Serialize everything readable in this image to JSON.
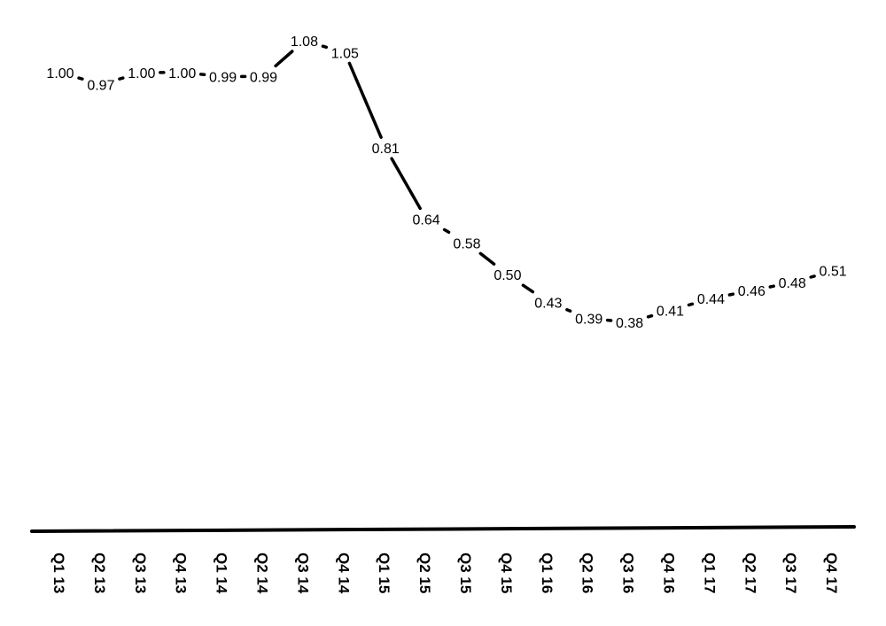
{
  "chart_data": {
    "type": "line",
    "title": "",
    "xlabel": "",
    "ylabel": "",
    "categories": [
      "Q1 13",
      "Q2 13",
      "Q3 13",
      "Q4 13",
      "Q1 14",
      "Q2 14",
      "Q3 14",
      "Q4 14",
      "Q1 15",
      "Q2 15",
      "Q3 15",
      "Q4 15",
      "Q1 16",
      "Q2 16",
      "Q3 16",
      "Q4 16",
      "Q1 17",
      "Q2 17",
      "Q3 17",
      "Q4 17"
    ],
    "series": [
      {
        "values": [
          1.0,
          0.97,
          1.0,
          1.0,
          0.99,
          0.99,
          1.08,
          1.05,
          0.81,
          0.64,
          0.58,
          0.5,
          0.43,
          0.39,
          0.38,
          0.41,
          0.44,
          0.46,
          0.48,
          0.51
        ],
        "labels": [
          "1.00",
          "0.97",
          "1.00",
          "1.00",
          "0.99",
          "0.99",
          "1.08",
          "1.05",
          "0.81",
          "0.64",
          "0.58",
          "0.50",
          "0.43",
          "0.39",
          "0.38",
          "0.41",
          "0.44",
          "0.46",
          "0.48",
          "0.51"
        ],
        "color": "#000000"
      }
    ],
    "grid": false,
    "legend": "none",
    "data_labels": true
  }
}
